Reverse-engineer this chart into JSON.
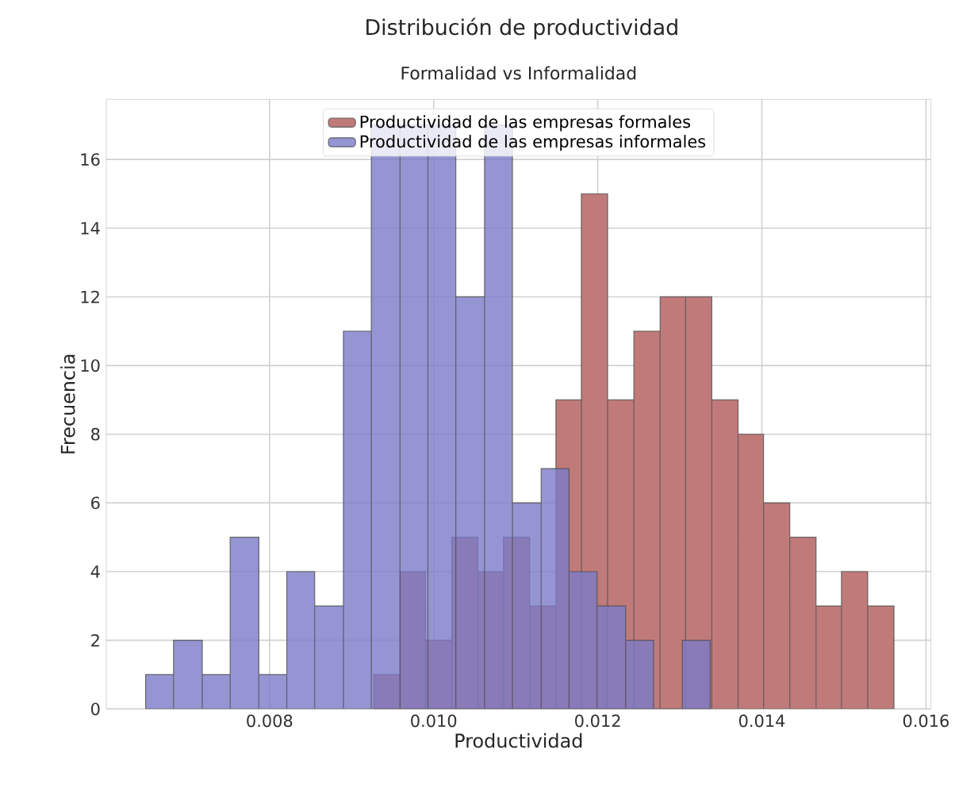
{
  "chart_data": {
    "type": "histogram",
    "title": "Distribución de productividad",
    "subtitle": "Formalidad vs Informalidad",
    "xlabel": "Productividad",
    "ylabel": "Frecuencia",
    "xlim": [
      0.00601,
      0.01606
    ],
    "ylim": [
      0,
      17.75
    ],
    "xticks": [
      0.008,
      {
        "value": 0.01,
        "label": "0.010"
      },
      0.012,
      0.014,
      0.016
    ],
    "yticks": [
      0,
      2,
      4,
      6,
      8,
      10,
      12,
      14,
      16
    ],
    "grid": true,
    "legend": "top",
    "bins": [
      0.00927,
      0.00959,
      0.0099,
      0.01022,
      0.01054,
      0.01085,
      0.01117,
      0.01149,
      0.0118,
      0.01212,
      0.01244,
      0.01276,
      0.01307,
      0.01339,
      0.01371,
      0.01402,
      0.01434,
      0.01466,
      0.01497,
      0.01529,
      0.01561
    ],
    "series": [
      {
        "name": "Productividad de las empresas formales",
        "color": "#c07a7a",
        "values": [
          1,
          4,
          2,
          5,
          4,
          5,
          3,
          9,
          15,
          9,
          11,
          12,
          12,
          9,
          8,
          6,
          5,
          3,
          4,
          3
        ]
      },
      {
        "name": "Productividad de las empresas informales",
        "color": "#7a7ac8",
        "bins": [
          0.00649,
          0.00683,
          0.00718,
          0.00752,
          0.00787,
          0.00821,
          0.00855,
          0.0089,
          0.00924,
          0.00959,
          0.00993,
          0.01027,
          0.01062,
          0.01096,
          0.01131,
          0.01165,
          0.01199,
          0.01234,
          0.01268,
          0.01303,
          0.01337
        ],
        "values": [
          1,
          2,
          1,
          5,
          1,
          4,
          3,
          11,
          17,
          17,
          17,
          12,
          17,
          6,
          7,
          4,
          3,
          2,
          0,
          2
        ]
      }
    ]
  }
}
